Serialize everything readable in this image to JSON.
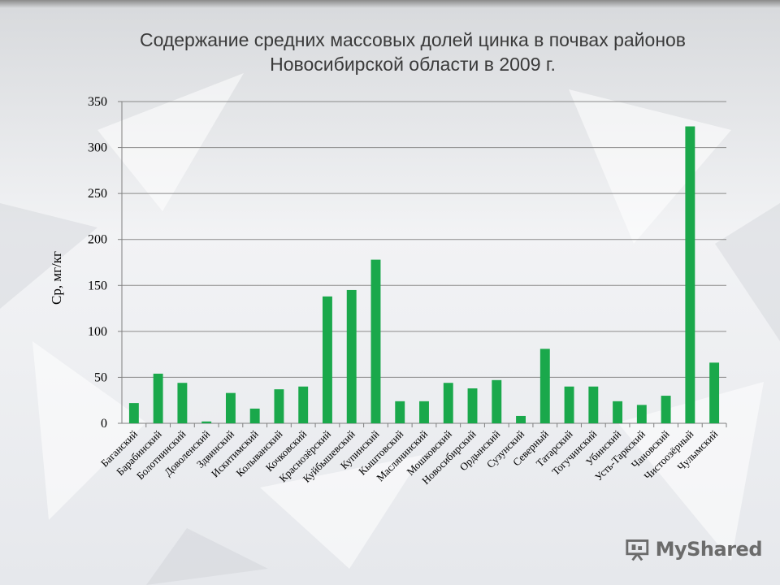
{
  "slide": {
    "title_line1": "Содержание средних массовых долей цинка в почвах районов",
    "title_line2": "Новосибирской области в 2009 г.",
    "watermark": "MyShared"
  },
  "colors": {
    "bar": "#1aa84b",
    "grid": "#8a8a8a",
    "axis": "#7f7f7f",
    "text": "#000000"
  },
  "chart_data": {
    "type": "bar",
    "title": "Содержание средних массовых долей цинка в почвах районов Новосибирской области в 2009 г.",
    "xlabel": "",
    "ylabel": "Ср, мг/кг",
    "ylim": [
      0,
      350
    ],
    "yticks": [
      0,
      50,
      100,
      150,
      200,
      250,
      300,
      350
    ],
    "grid": true,
    "legend": "none",
    "categories": [
      "Баганский",
      "Барабинский",
      "Болотнинский",
      "Доволенский",
      "Здвинский",
      "Искитимский",
      "Колыванский",
      "Кочковский",
      "Краснозёрский",
      "Куйбышевский",
      "Купинский",
      "Кыштовский",
      "Маслянинский",
      "Мошковский",
      "Новосибирский",
      "Ордынский",
      "Сузунский",
      "Северный",
      "Татарский",
      "Тогучинский",
      "Убинский",
      "Усть-Таркский",
      "Чановский",
      "Чистоозёрный",
      "Чулымский"
    ],
    "values": [
      22,
      54,
      44,
      2,
      33,
      16,
      37,
      40,
      138,
      145,
      178,
      24,
      24,
      44,
      38,
      47,
      8,
      81,
      40,
      40,
      24,
      20,
      30,
      323,
      66
    ]
  }
}
